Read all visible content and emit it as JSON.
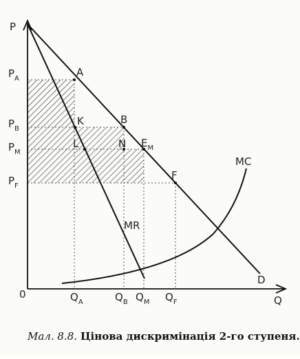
{
  "axes": {
    "y_label": "P",
    "x_label": "Q",
    "origin": "0"
  },
  "price_labels": [
    {
      "base": "P",
      "sub": "A"
    },
    {
      "base": "P",
      "sub": "B"
    },
    {
      "base": "P",
      "sub": "M"
    },
    {
      "base": "P",
      "sub": "F"
    }
  ],
  "quantity_labels": [
    {
      "base": "Q",
      "sub": "A"
    },
    {
      "base": "Q",
      "sub": "B"
    },
    {
      "base": "Q",
      "sub": "M"
    },
    {
      "base": "Q",
      "sub": "F"
    }
  ],
  "points": [
    "A",
    "K",
    "B",
    "L",
    "N",
    {
      "base": "E",
      "sub": "M"
    },
    "F"
  ],
  "curves": {
    "mc": "MC",
    "mr": "MR",
    "d": "D"
  },
  "caption": {
    "number": "Мал. 8.8.",
    "text": "Цінова дискримінація 2-го ступеня."
  }
}
